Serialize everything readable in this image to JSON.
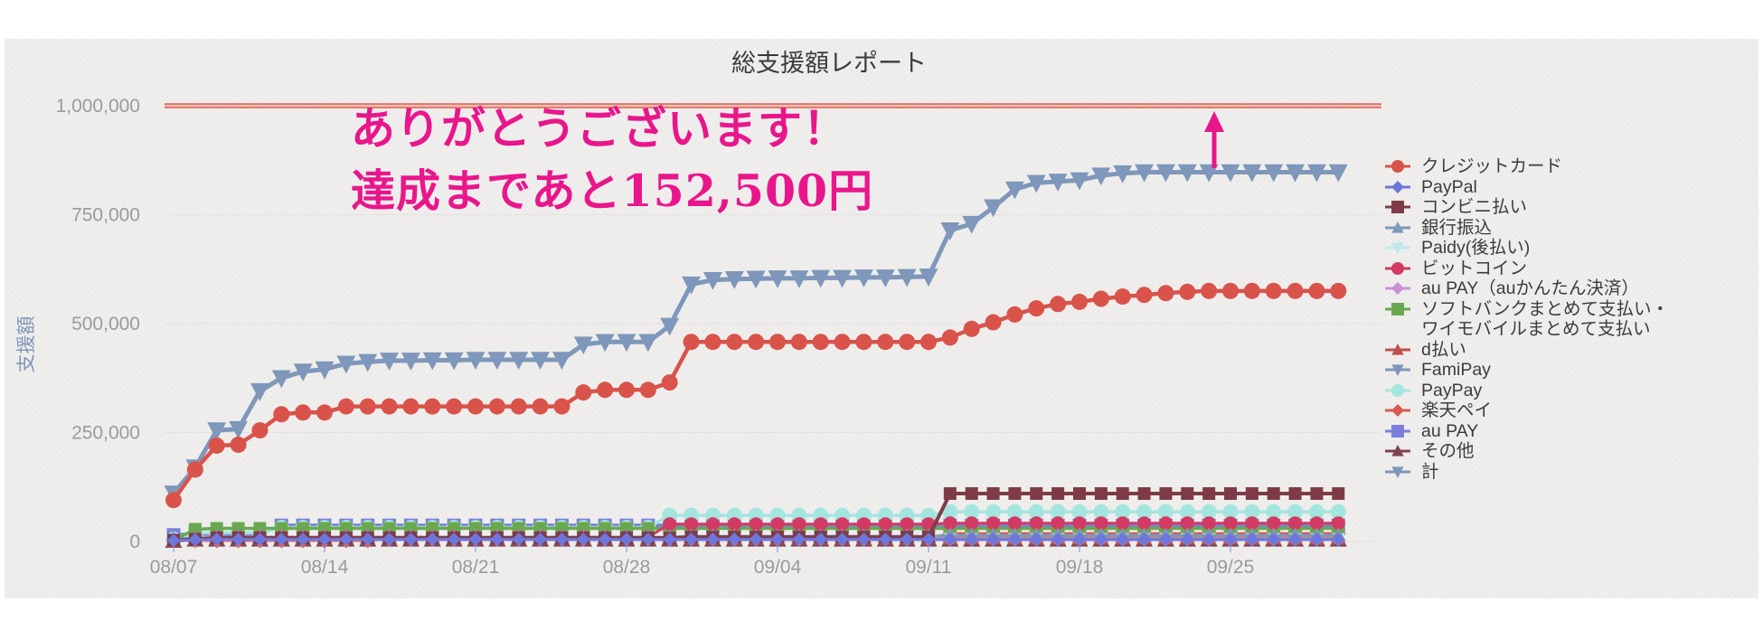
{
  "title": "総支援額レポート",
  "annotation": {
    "line1": "ありがとうございます！",
    "line2": "達成まであと152,500円",
    "color": "#e9168b",
    "arrow": "up-arrow toward goal line"
  },
  "goal_line": {
    "value": 1000000,
    "color": "#d9604f"
  },
  "y_axis": {
    "label": "支援額",
    "tick_labels": [
      "0",
      "250,000",
      "500,000",
      "750,000",
      "1,000,000"
    ],
    "tick_values": [
      0,
      250000,
      500000,
      750000,
      1000000
    ],
    "label_color": "#7e97ba",
    "tick_color": "#9b9b9b"
  },
  "x_axis": {
    "tick_labels": [
      "08/07",
      "08/14",
      "08/21",
      "08/28",
      "09/04",
      "09/11",
      "09/18",
      "09/25"
    ],
    "tick_indices": [
      0,
      7,
      14,
      21,
      28,
      35,
      42,
      49
    ],
    "tick_color": "#9b9b9b"
  },
  "chart_data": {
    "type": "line",
    "title": "総支援額レポート",
    "ylabel": "支援額",
    "ylim": [
      0,
      1000000
    ],
    "x_start": "08/07",
    "x_end": "09/30",
    "n_points": 55,
    "grid": true,
    "legend_position": "right",
    "goal_value": 1000000,
    "remaining_to_goal": 152500,
    "series": [
      {
        "key": "credit-card",
        "name": "クレジットカード",
        "color": "#d9534b",
        "marker": "circle",
        "size": 9,
        "lw": 4.5,
        "values": [
          95000,
          165000,
          220000,
          222000,
          255000,
          292000,
          296000,
          296000,
          310000,
          310000,
          310000,
          310000,
          310000,
          310000,
          310000,
          310000,
          310000,
          310000,
          310000,
          342000,
          348000,
          348000,
          348000,
          365000,
          458000,
          458000,
          458000,
          458000,
          458000,
          458000,
          458000,
          458000,
          458000,
          458000,
          458000,
          458000,
          468000,
          488000,
          503000,
          521000,
          535000,
          545000,
          550000,
          557000,
          562000,
          566000,
          570000,
          573000,
          575000,
          575000,
          575000,
          575000,
          575000,
          575000,
          575000
        ]
      },
      {
        "key": "paypal",
        "name": "PayPal",
        "color": "#6f76d9",
        "marker": "diamond",
        "size": 7.5,
        "lw": 3,
        "values": [
          2000,
          4000,
          5000,
          5000,
          5000,
          5000,
          5000,
          5000,
          5000,
          5000,
          5000,
          5000,
          5000,
          5000,
          5000,
          5000,
          5000,
          5000,
          5000,
          5000,
          5000,
          5000,
          5000,
          5000,
          5000,
          5000,
          5000,
          5000,
          5000,
          5000,
          5000,
          5000,
          5000,
          5000,
          5000,
          5000,
          5000,
          5000,
          5000,
          5000,
          5000,
          5000,
          5000,
          5000,
          5000,
          5000,
          5000,
          5000,
          5000,
          5000,
          5000,
          5000,
          5000,
          5000,
          5000
        ]
      },
      {
        "key": "konbini",
        "name": "コンビニ払い",
        "color": "#7e3b47",
        "marker": "square",
        "size": 7,
        "lw": 4,
        "values": [
          3000,
          5000,
          8000,
          8000,
          8000,
          8000,
          8000,
          8000,
          8000,
          8000,
          8000,
          8000,
          8000,
          8000,
          8000,
          8000,
          8000,
          8000,
          8000,
          8000,
          8000,
          8000,
          8000,
          8000,
          10000,
          10000,
          10000,
          10000,
          10000,
          10000,
          10000,
          10000,
          10000,
          10000,
          10000,
          10000,
          110000,
          110000,
          110000,
          110000,
          110000,
          110000,
          110000,
          110000,
          110000,
          110000,
          110000,
          110000,
          110000,
          110000,
          110000,
          110000,
          110000,
          110000,
          110000
        ]
      },
      {
        "key": "bank-transfer",
        "name": "銀行振込",
        "color": "#7e97ba",
        "marker": "triangle-up",
        "size": 9,
        "lw": 3,
        "values": [
          5000,
          8000,
          10000,
          10000,
          10000,
          10000,
          10000,
          10000,
          10000,
          10000,
          10000,
          10000,
          10000,
          10000,
          10000,
          10000,
          10000,
          10000,
          10000,
          10000,
          10000,
          10000,
          10000,
          10000,
          12000,
          12000,
          12000,
          12000,
          12000,
          12000,
          12000,
          12000,
          12000,
          12000,
          12000,
          12000,
          14000,
          14000,
          14000,
          14000,
          14000,
          14000,
          14000,
          14000,
          14000,
          14000,
          14000,
          14000,
          14000,
          14000,
          14000,
          14000,
          14000,
          14000,
          14000
        ]
      },
      {
        "key": "paidy",
        "name": "Paidy(後払い)",
        "color": "#bfe8ec",
        "marker": "triangle-down",
        "size": 8,
        "lw": 3,
        "values": [
          2000,
          4000,
          6000,
          6000,
          6000,
          6000,
          6000,
          6000,
          6000,
          6000,
          6000,
          6000,
          6000,
          6000,
          6000,
          6000,
          6000,
          6000,
          6000,
          6000,
          6000,
          6000,
          6000,
          6000,
          6000,
          6000,
          6000,
          6000,
          6000,
          6000,
          6000,
          6000,
          6000,
          6000,
          6000,
          6000,
          6000,
          6000,
          6000,
          6000,
          6000,
          6000,
          6000,
          6000,
          6000,
          6000,
          6000,
          6000,
          6000,
          6000,
          6000,
          6000,
          6000,
          6000,
          6000
        ]
      },
      {
        "key": "bitcoin",
        "name": "ビットコイン",
        "color": "#d23a63",
        "marker": "circle",
        "size": 7.5,
        "lw": 3,
        "values": [
          3000,
          6000,
          10000,
          10000,
          10000,
          10000,
          10000,
          10000,
          10000,
          10000,
          10000,
          10000,
          10000,
          10000,
          10000,
          10000,
          10000,
          10000,
          10000,
          10000,
          10000,
          10000,
          10000,
          40000,
          40000,
          40000,
          40000,
          40000,
          40000,
          40000,
          40000,
          40000,
          40000,
          40000,
          40000,
          40000,
          42000,
          42000,
          42000,
          42000,
          42000,
          42000,
          42000,
          42000,
          42000,
          42000,
          42000,
          42000,
          42000,
          42000,
          42000,
          42000,
          42000,
          42000,
          42000
        ]
      },
      {
        "key": "aupay-kantan",
        "name": "au PAY（auかんたん決済）",
        "color": "#cb8fd6",
        "marker": "diamond",
        "size": 7.5,
        "lw": 3,
        "values": [
          1000,
          3000,
          4000,
          4000,
          4000,
          4000,
          4000,
          4000,
          4000,
          4000,
          4000,
          4000,
          4000,
          4000,
          4000,
          4000,
          4000,
          4000,
          4000,
          4000,
          4000,
          4000,
          4000,
          4000,
          4000,
          4000,
          4000,
          4000,
          4000,
          4000,
          4000,
          4000,
          4000,
          4000,
          4000,
          4000,
          4000,
          4000,
          4000,
          4000,
          4000,
          4000,
          4000,
          4000,
          4000,
          4000,
          4000,
          4000,
          4000,
          4000,
          4000,
          4000,
          4000,
          4000,
          4000
        ]
      },
      {
        "key": "softbank",
        "name": "ソフトバンクまとめて支払い・\nワイモバイルまとめて支払い",
        "color": "#6aa84f",
        "marker": "square",
        "size": 7,
        "lw": 3.5,
        "values": [
          3000,
          28000,
          30000,
          30000,
          30000,
          30000,
          30000,
          30000,
          30000,
          30000,
          30000,
          30000,
          30000,
          30000,
          30000,
          30000,
          30000,
          30000,
          30000,
          30000,
          30000,
          30000,
          30000,
          30000,
          30000,
          30000,
          30000,
          30000,
          30000,
          30000,
          30000,
          30000,
          30000,
          30000,
          30000,
          30000,
          30000,
          30000,
          30000,
          30000,
          30000,
          30000,
          30000,
          30000,
          30000,
          30000,
          30000,
          30000,
          30000,
          30000,
          30000,
          30000,
          30000,
          30000,
          30000
        ]
      },
      {
        "key": "d-barai",
        "name": "d払い",
        "color": "#c0504d",
        "marker": "triangle-up",
        "size": 9,
        "lw": 3,
        "values": [
          2000,
          5000,
          8000,
          8000,
          8000,
          8000,
          8000,
          8000,
          8000,
          8000,
          8000,
          8000,
          8000,
          8000,
          8000,
          8000,
          8000,
          8000,
          8000,
          8000,
          8000,
          8000,
          8000,
          8000,
          8000,
          8000,
          8000,
          8000,
          8000,
          8000,
          8000,
          8000,
          8000,
          8000,
          8000,
          8000,
          8000,
          8000,
          8000,
          8000,
          8000,
          8000,
          8000,
          8000,
          8000,
          8000,
          8000,
          8000,
          8000,
          8000,
          8000,
          8000,
          8000,
          8000,
          8000
        ]
      },
      {
        "key": "famipay",
        "name": "FamiPay",
        "color": "#7e97ba",
        "marker": "triangle-down",
        "size": 8,
        "lw": 3,
        "values": [
          1000,
          3000,
          6000,
          6000,
          6000,
          6000,
          6000,
          6000,
          6000,
          6000,
          6000,
          6000,
          6000,
          6000,
          6000,
          6000,
          6000,
          6000,
          6000,
          6000,
          6000,
          6000,
          6000,
          6000,
          6000,
          6000,
          6000,
          6000,
          6000,
          6000,
          6000,
          6000,
          6000,
          6000,
          6000,
          6000,
          6000,
          6000,
          6000,
          6000,
          6000,
          6000,
          6000,
          6000,
          6000,
          6000,
          6000,
          6000,
          6000,
          6000,
          6000,
          6000,
          6000,
          6000,
          6000
        ]
      },
      {
        "key": "paypay",
        "name": "PayPay",
        "color": "#a5e5df",
        "marker": "circle",
        "size": 8.5,
        "lw": 3.5,
        "values": [
          5000,
          20000,
          20000,
          20000,
          20000,
          32000,
          32000,
          32000,
          32000,
          32000,
          32000,
          32000,
          32000,
          32000,
          32000,
          32000,
          32000,
          32000,
          32000,
          32000,
          32000,
          32000,
          32000,
          60000,
          60000,
          60000,
          60000,
          60000,
          60000,
          60000,
          60000,
          60000,
          60000,
          60000,
          60000,
          60000,
          68000,
          68000,
          68000,
          68000,
          68000,
          68000,
          68000,
          68000,
          68000,
          68000,
          68000,
          68000,
          68000,
          68000,
          68000,
          68000,
          68000,
          68000,
          68000
        ]
      },
      {
        "key": "rakuten-pay",
        "name": "楽天ペイ",
        "color": "#d95850",
        "marker": "diamond",
        "size": 8.5,
        "lw": 3,
        "values": [
          2000,
          2000,
          2000,
          2000,
          2000,
          2000,
          2000,
          2000,
          2000,
          2000,
          6000,
          6000,
          6000,
          6000,
          6000,
          6000,
          6000,
          6000,
          6000,
          6000,
          6000,
          6000,
          6000,
          6000,
          6000,
          6000,
          6000,
          6000,
          6000,
          6000,
          6000,
          6000,
          6000,
          6000,
          6000,
          6000,
          18000,
          18000,
          18000,
          18000,
          18000,
          18000,
          18000,
          18000,
          18000,
          18000,
          18000,
          18000,
          18000,
          18000,
          18000,
          18000,
          18000,
          18000,
          18000
        ]
      },
      {
        "key": "aupay",
        "name": "au PAY",
        "color": "#7b7fdb",
        "marker": "square",
        "size": 7.5,
        "lw": 4,
        "values": [
          15000,
          17000,
          17000,
          17000,
          17000,
          37000,
          37000,
          37000,
          37000,
          37000,
          37000,
          37000,
          37000,
          37000,
          37000,
          37000,
          37000,
          37000,
          37000,
          37000,
          37000,
          37000,
          37000,
          37000,
          37000,
          37000,
          37000,
          37000,
          37000,
          37000,
          37000,
          37000,
          37000,
          37000,
          37000,
          37000,
          37000,
          37000,
          37000,
          37000,
          37000,
          37000,
          37000,
          37000,
          37000,
          37000,
          37000,
          37000,
          37000,
          37000,
          37000,
          37000,
          37000,
          37000,
          37000
        ]
      },
      {
        "key": "sonota",
        "name": "その他",
        "color": "#7e4353",
        "marker": "triangle-up",
        "size": 10,
        "lw": 3,
        "values": [
          2000,
          5000,
          5000,
          5000,
          5000,
          5000,
          5000,
          5000,
          5000,
          5000,
          5000,
          5000,
          5000,
          5000,
          5000,
          5000,
          5000,
          5000,
          5000,
          5000,
          5000,
          5000,
          5000,
          5000,
          5000,
          5000,
          5000,
          5000,
          5000,
          5000,
          5000,
          5000,
          5000,
          5000,
          5000,
          5000,
          5000,
          5000,
          5000,
          5000,
          5000,
          5000,
          5000,
          5000,
          5000,
          5000,
          5000,
          5000,
          5000,
          5000,
          5000,
          5000,
          5000,
          5000,
          5000
        ]
      },
      {
        "key": "kei",
        "name": "計",
        "color": "#7e97ba",
        "marker": "triangle-down",
        "size": 11,
        "lw": 5,
        "values": [
          110000,
          170000,
          255000,
          258000,
          345000,
          375000,
          390000,
          395000,
          408000,
          412000,
          415000,
          415000,
          416000,
          416000,
          417000,
          417000,
          417000,
          417000,
          417000,
          452000,
          458000,
          458000,
          458000,
          495000,
          590000,
          600000,
          602000,
          603000,
          604000,
          604000,
          605000,
          605000,
          606000,
          606000,
          607000,
          608000,
          714000,
          729000,
          767000,
          808000,
          823000,
          826000,
          829000,
          840000,
          845000,
          847500,
          847500,
          847500,
          847500,
          847500,
          847500,
          847500,
          847500,
          847500,
          847500
        ]
      }
    ]
  }
}
